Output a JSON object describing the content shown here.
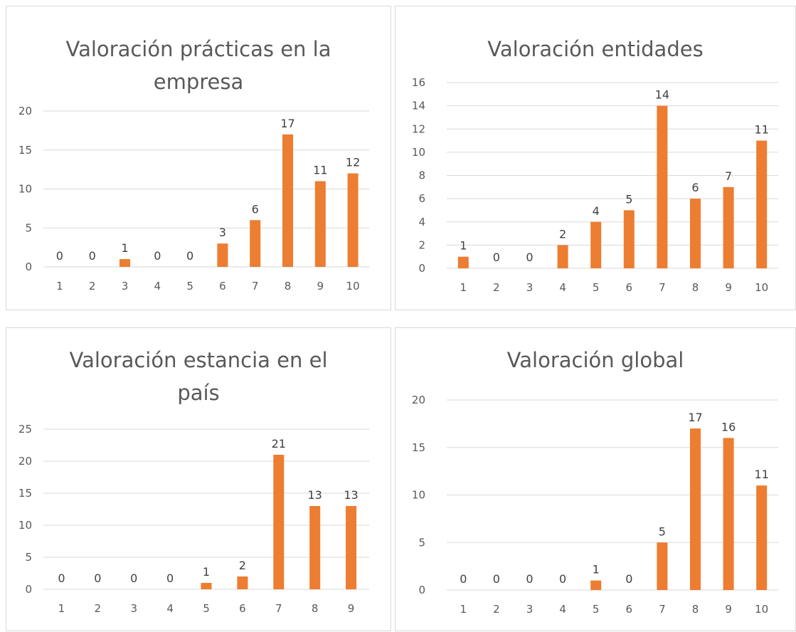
{
  "accent_color": "#ed7d31",
  "chart_data": [
    {
      "type": "bar",
      "title": "Valoración prácticas en la empresa",
      "categories": [
        "1",
        "2",
        "3",
        "4",
        "5",
        "6",
        "7",
        "8",
        "9",
        "10"
      ],
      "values": [
        0,
        0,
        1,
        0,
        0,
        3,
        6,
        17,
        11,
        12
      ],
      "ylim": [
        0,
        20
      ],
      "yticks": [
        0,
        5,
        10,
        15,
        20
      ],
      "grid": true,
      "data_labels": true
    },
    {
      "type": "bar",
      "title": "Valoración entidades",
      "categories": [
        "1",
        "2",
        "3",
        "4",
        "5",
        "6",
        "7",
        "8",
        "9",
        "10"
      ],
      "values": [
        1,
        0,
        0,
        2,
        4,
        5,
        14,
        6,
        7,
        11
      ],
      "ylim": [
        0,
        16
      ],
      "yticks": [
        0,
        2,
        4,
        6,
        8,
        10,
        12,
        14,
        16
      ],
      "grid": true,
      "data_labels": true
    },
    {
      "type": "bar",
      "title": "Valoración estancia en el país",
      "categories": [
        "1",
        "2",
        "3",
        "4",
        "5",
        "6",
        "7",
        "8",
        "9"
      ],
      "values": [
        0,
        0,
        0,
        0,
        1,
        2,
        21,
        13,
        13
      ],
      "ylim": [
        0,
        25
      ],
      "yticks": [
        0,
        5,
        10,
        15,
        20,
        25
      ],
      "grid": true,
      "data_labels": true
    },
    {
      "type": "bar",
      "title": "Valoración global",
      "categories": [
        "1",
        "2",
        "3",
        "4",
        "5",
        "6",
        "7",
        "8",
        "9",
        "10"
      ],
      "values": [
        0,
        0,
        0,
        0,
        1,
        0,
        5,
        17,
        16,
        11
      ],
      "ylim": [
        0,
        20
      ],
      "yticks": [
        0,
        5,
        10,
        15,
        20
      ],
      "grid": true,
      "data_labels": true
    }
  ]
}
